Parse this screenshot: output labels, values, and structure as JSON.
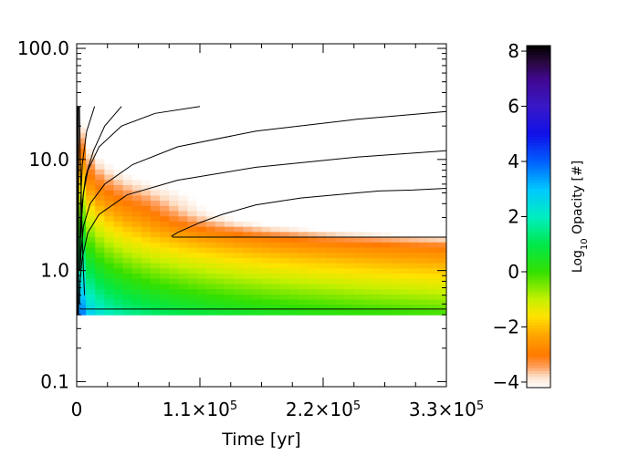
{
  "chart_data": {
    "type": "heatmap",
    "title": "",
    "xlabel": "Time [yr]",
    "ylabel": "",
    "x_ticks": [
      {
        "value": 0,
        "label": "0"
      },
      {
        "value": 110000,
        "label": "1.1×10",
        "exp": "5"
      },
      {
        "value": 220000,
        "label": "2.2×10",
        "exp": "5"
      },
      {
        "value": 330000,
        "label": "3.3×10",
        "exp": "5"
      }
    ],
    "y_ticks": [
      {
        "value": 0.1,
        "label": "0.1"
      },
      {
        "value": 1.0,
        "label": "1.0"
      },
      {
        "value": 10.0,
        "label": "10.0"
      },
      {
        "value": 100.0,
        "label": "100.0"
      }
    ],
    "xlim": [
      0,
      330000
    ],
    "ylim": [
      0.09,
      110
    ],
    "y_scale": "log",
    "data_y_range": [
      0.4,
      30
    ],
    "colorbar": {
      "label_pre": "Log",
      "label_sub": "10",
      "label_post": " Opacity [#]",
      "range": [
        -4.2,
        8.2
      ],
      "ticks": [
        {
          "value": -4,
          "label": "−4"
        },
        {
          "value": -2,
          "label": "−2"
        },
        {
          "value": 0,
          "label": "0"
        },
        {
          "value": 2,
          "label": "2"
        },
        {
          "value": 4,
          "label": "4"
        },
        {
          "value": 6,
          "label": "6"
        },
        {
          "value": 8,
          "label": "8"
        }
      ],
      "colormap": [
        {
          "v": -4.2,
          "c": "#ffffff"
        },
        {
          "v": -3.8,
          "c": "#fde2cc"
        },
        {
          "v": -3.4,
          "c": "#ff9a55"
        },
        {
          "v": -3.0,
          "c": "#ff7a00"
        },
        {
          "v": -2.3,
          "c": "#ffa300"
        },
        {
          "v": -1.6,
          "c": "#ffe300"
        },
        {
          "v": -1.0,
          "c": "#c8f000"
        },
        {
          "v": 0.0,
          "c": "#35e000"
        },
        {
          "v": 1.0,
          "c": "#00e84a"
        },
        {
          "v": 2.0,
          "c": "#00eec0"
        },
        {
          "v": 3.0,
          "c": "#00c8ff"
        },
        {
          "v": 4.0,
          "c": "#0060ff"
        },
        {
          "v": 5.0,
          "c": "#1010e8"
        },
        {
          "v": 6.0,
          "c": "#3818c8"
        },
        {
          "v": 7.0,
          "c": "#400890"
        },
        {
          "v": 7.6,
          "c": "#2a0840"
        },
        {
          "v": 8.2,
          "c": "#000000"
        }
      ]
    },
    "field_model": "opacity(t,r) = A0 - Ar*log10(r) - At*log10(t)+ ridge, with white ridge near r≈2–4 at late times",
    "field_params": {
      "A0": 3.0,
      "Ar": 7.0,
      "At": 0.55,
      "ridge_amp": 3.2,
      "ridge_r": 3.3,
      "ridge_width": 0.18,
      "ridge_t": 60000,
      "grid_x": 40,
      "grid_y": 40
    },
    "contours": [
      {
        "name": "contour-1",
        "points": [
          [
            2500,
            30
          ],
          [
            2800,
            20
          ],
          [
            3200,
            10
          ],
          [
            4000,
            5
          ],
          [
            5000,
            2
          ],
          [
            6000,
            1
          ],
          [
            7000,
            0.6
          ]
        ]
      },
      {
        "name": "contour-2",
        "points": [
          [
            16000,
            30
          ],
          [
            9000,
            18
          ],
          [
            5000,
            9
          ],
          [
            3500,
            4
          ],
          [
            3000,
            2
          ],
          [
            2600,
            1
          ]
        ]
      },
      {
        "name": "contour-3",
        "points": [
          [
            40000,
            30
          ],
          [
            25000,
            20
          ],
          [
            15000,
            12
          ],
          [
            8000,
            7
          ],
          [
            5000,
            4
          ],
          [
            3500,
            2.2
          ],
          [
            3000,
            1.2
          ]
        ]
      },
      {
        "name": "contour-4",
        "points": [
          [
            110000,
            30
          ],
          [
            70000,
            26
          ],
          [
            40000,
            20
          ],
          [
            20000,
            13
          ],
          [
            10000,
            8
          ],
          [
            6000,
            5
          ],
          [
            4500,
            3
          ],
          [
            3500,
            2
          ]
        ]
      },
      {
        "name": "contour-5",
        "points": [
          [
            330000,
            27
          ],
          [
            250000,
            23
          ],
          [
            160000,
            18
          ],
          [
            90000,
            13
          ],
          [
            50000,
            9
          ],
          [
            25000,
            6
          ],
          [
            12000,
            4
          ],
          [
            6000,
            2.5
          ],
          [
            4000,
            1.5
          ],
          [
            3000,
            1
          ]
        ]
      },
      {
        "name": "contour-6",
        "points": [
          [
            330000,
            12
          ],
          [
            250000,
            10.5
          ],
          [
            160000,
            8.5
          ],
          [
            90000,
            6.5
          ],
          [
            45000,
            4.8
          ],
          [
            20000,
            3.2
          ],
          [
            10000,
            2.2
          ],
          [
            5000,
            1.3
          ],
          [
            3000,
            0.8
          ],
          [
            2500,
            0.5
          ]
        ]
      },
      {
        "name": "contour-7",
        "points": [
          [
            330000,
            5.5
          ],
          [
            300000,
            5.3
          ],
          [
            270000,
            5.2
          ],
          [
            230000,
            4.8
          ],
          [
            200000,
            4.5
          ],
          [
            160000,
            3.9
          ],
          [
            130000,
            3.2
          ],
          [
            110000,
            2.7
          ],
          [
            90000,
            2.2
          ],
          [
            85000,
            2.05
          ],
          [
            86000,
            2.0
          ],
          [
            330000,
            2.0
          ]
        ]
      },
      {
        "name": "contour-8",
        "points": [
          [
            3000,
            0.46
          ],
          [
            3500,
            0.45
          ],
          [
            330000,
            0.45
          ]
        ]
      },
      {
        "name": "contour-9",
        "points": [
          [
            1200,
            30
          ],
          [
            1200,
            0.4
          ]
        ]
      }
    ]
  }
}
